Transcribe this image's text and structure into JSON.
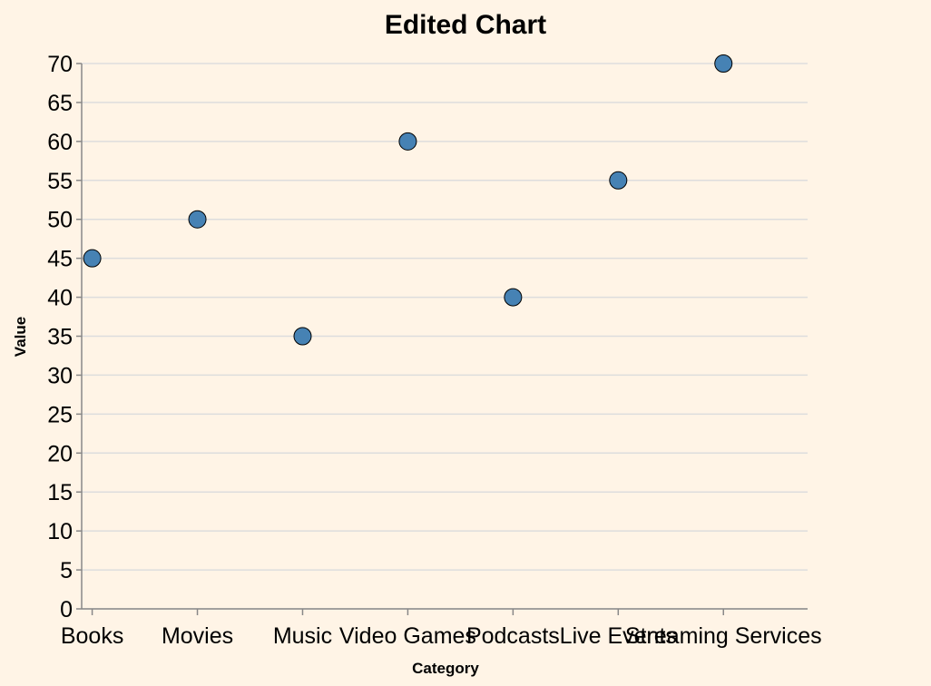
{
  "chart_data": {
    "type": "scatter",
    "title": "Edited Chart",
    "xlabel": "Category",
    "ylabel": "Value",
    "categories": [
      "Books",
      "Movies",
      "Music",
      "Video Games",
      "Podcasts",
      "Live Events",
      "Streaming Services"
    ],
    "values": [
      45,
      50,
      35,
      60,
      40,
      55,
      70
    ],
    "ylim": [
      0,
      70
    ],
    "yticks": [
      0,
      5,
      10,
      15,
      20,
      25,
      30,
      35,
      40,
      45,
      50,
      55,
      60,
      65,
      70
    ],
    "grid": true,
    "point_color": "#4682b4",
    "background": "#fff4e6"
  }
}
